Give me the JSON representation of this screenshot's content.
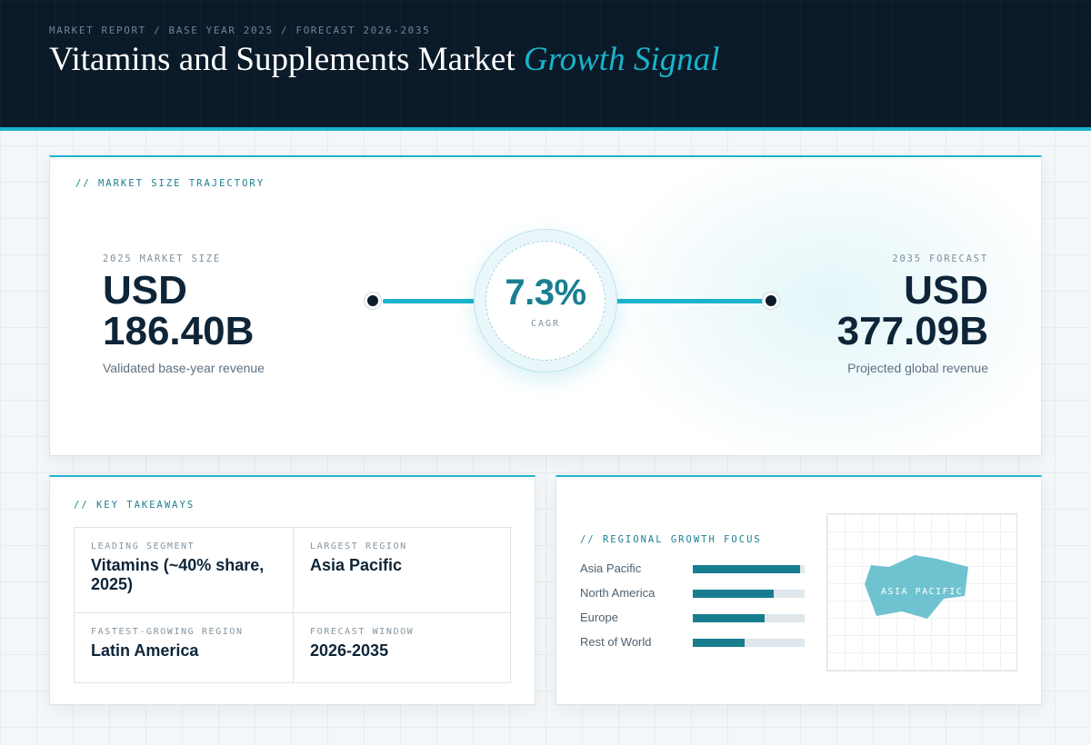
{
  "header": {
    "breadcrumb": "MARKET REPORT / BASE YEAR 2025 / FORECAST 2026-2035",
    "title_main": "Vitamins and Supplements Market",
    "title_accent": "Growth Signal"
  },
  "trajectory": {
    "section_label": "// MARKET SIZE TRAJECTORY",
    "start": {
      "label": "2025 MARKET SIZE",
      "currency": "USD",
      "value": "186.40B",
      "caption": "Validated base-year revenue"
    },
    "cagr": {
      "value": "7.3%",
      "label": "CAGR"
    },
    "end": {
      "label": "2035 FORECAST",
      "currency": "USD",
      "value": "377.09B",
      "caption": "Projected global revenue"
    }
  },
  "takeaways": {
    "section_label": "// KEY TAKEAWAYS",
    "items": [
      {
        "label": "LEADING SEGMENT",
        "value": "Vitamins (~40% share, 2025)"
      },
      {
        "label": "LARGEST REGION",
        "value": "Asia Pacific"
      },
      {
        "label": "FASTEST-GROWING REGION",
        "value": "Latin America"
      },
      {
        "label": "FORECAST WINDOW",
        "value": "2026-2035"
      }
    ]
  },
  "regional": {
    "section_label": "// REGIONAL GROWTH FOCUS",
    "bars": [
      {
        "name": "Asia Pacific",
        "level": 0.96
      },
      {
        "name": "North America",
        "level": 0.72
      },
      {
        "name": "Europe",
        "level": 0.64
      },
      {
        "name": "Rest of World",
        "level": 0.46
      }
    ],
    "map_label": "ASIA PACIFIC"
  },
  "colors": {
    "accent": "#1ab3cc",
    "accent_dark": "#177d8f",
    "navy": "#0a1a28",
    "text_dark": "#0e2538"
  }
}
